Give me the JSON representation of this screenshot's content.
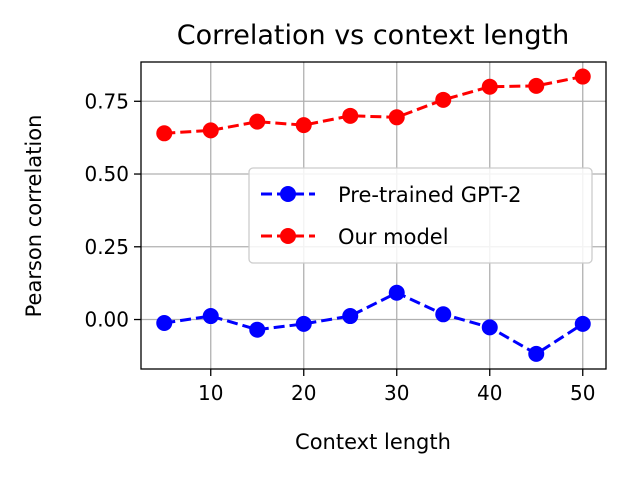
{
  "chart_data": {
    "type": "line",
    "title": "Correlation vs context length",
    "xlabel": "Context length",
    "ylabel": "Pearson correlation",
    "xlim": [
      2.5,
      52.5
    ],
    "ylim": [
      -0.17,
      0.885
    ],
    "xticks": [
      10,
      20,
      30,
      40,
      50
    ],
    "yticks": [
      0.0,
      0.25,
      0.5,
      0.75
    ],
    "xtick_labels": [
      "10",
      "20",
      "30",
      "40",
      "50"
    ],
    "ytick_labels": [
      "0.00",
      "0.25",
      "0.50",
      "0.75"
    ],
    "grid": true,
    "legend_position": "center-right",
    "x": [
      5,
      10,
      15,
      20,
      25,
      30,
      35,
      40,
      45,
      50
    ],
    "series": [
      {
        "name": "Pre-trained GPT-2",
        "color": "#0000ff",
        "style": "dashed-circle",
        "values": [
          -0.012,
          0.012,
          -0.035,
          -0.015,
          0.012,
          0.092,
          0.018,
          -0.027,
          -0.118,
          -0.015
        ]
      },
      {
        "name": "Our model",
        "color": "#ff0000",
        "style": "dashed-circle",
        "values": [
          0.64,
          0.65,
          0.68,
          0.668,
          0.7,
          0.695,
          0.755,
          0.8,
          0.803,
          0.835
        ]
      }
    ]
  }
}
